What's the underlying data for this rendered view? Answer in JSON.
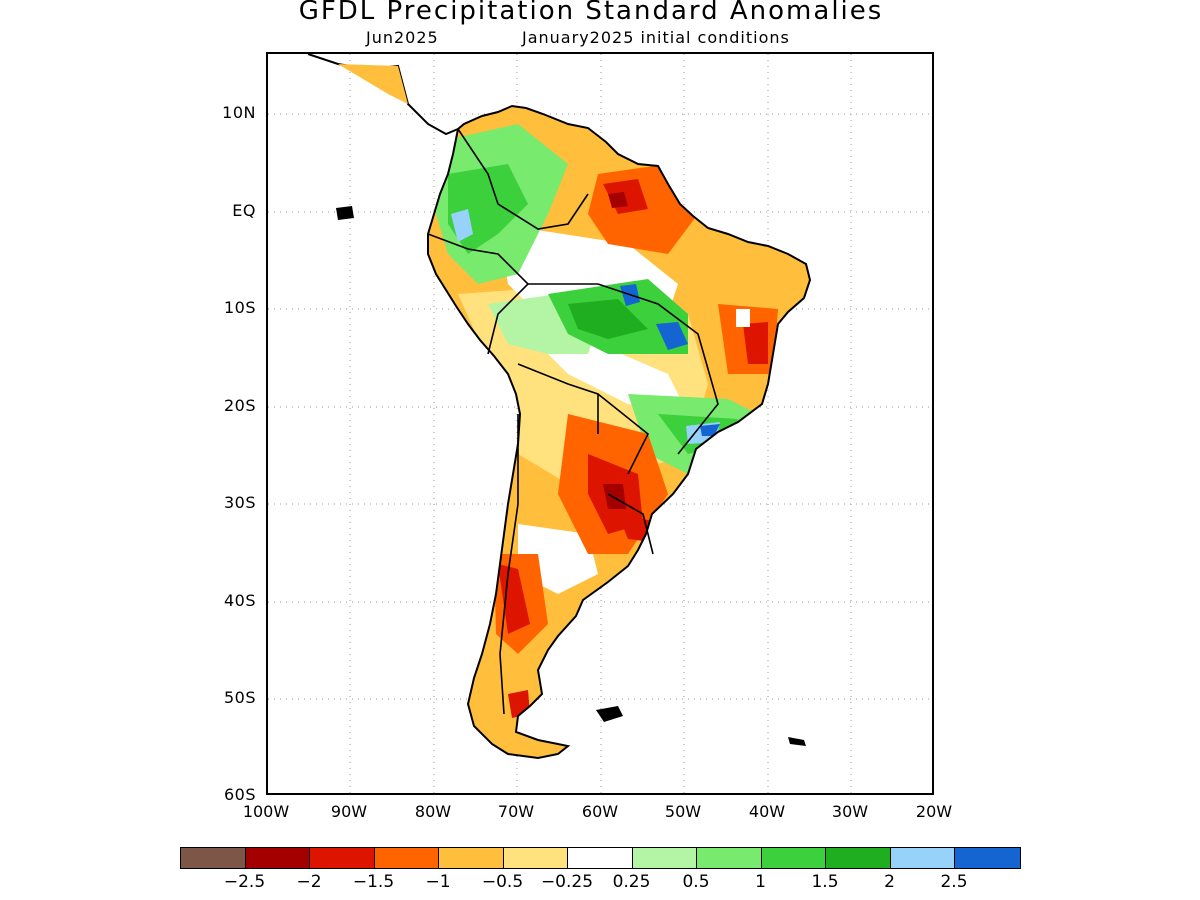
{
  "header": {
    "title": "GFDL Precipitation Standard Anomalies",
    "valid_month": "Jun2025",
    "initial_conditions": "January2025 initial conditions"
  },
  "axes": {
    "lat_labels": [
      "10N",
      "EQ",
      "10S",
      "20S",
      "30S",
      "40S",
      "50S",
      "60S"
    ],
    "lon_labels": [
      "100W",
      "90W",
      "80W",
      "70W",
      "60W",
      "50W",
      "40W",
      "30W",
      "20W"
    ],
    "lat_range": [
      -60,
      14
    ],
    "lon_range": [
      -100,
      -20
    ],
    "gridlines": "dotted"
  },
  "legend": {
    "colors": [
      "#7d5647",
      "#a50000",
      "#dd1400",
      "#ff6400",
      "#ffbe3c",
      "#ffe17d",
      "#ffffff",
      "#b4f5a5",
      "#78ea6e",
      "#3cd03c",
      "#1fae20",
      "#96d2fa",
      "#1464d2"
    ],
    "labels": [
      "−2.5",
      "−2",
      "−1.5",
      "−1",
      "−0.5",
      "−0.25",
      "0.25",
      "0.5",
      "1",
      "1.5",
      "2",
      "2.5"
    ]
  },
  "map": {
    "region": "South America",
    "colors": {
      "land": "#ffffff",
      "coast": "#000000",
      "grid": "#9a9a9a"
    }
  }
}
